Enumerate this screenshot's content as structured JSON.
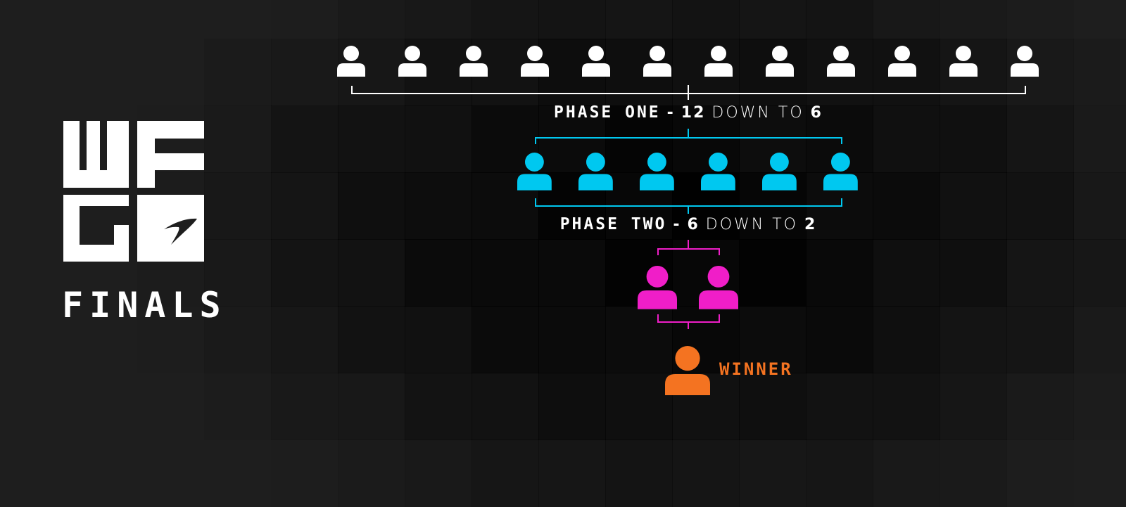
{
  "logo": {
    "text": "WFG",
    "icon": "mclaren-swoosh-icon",
    "subtitle": "FINALS"
  },
  "colors": {
    "background": "#1e1e1e",
    "white": "#ffffff",
    "phase_one": "#00c8f0",
    "phase_two": "#f01ec8",
    "winner": "#f47321"
  },
  "stages": [
    {
      "count": 12,
      "color": "#ffffff"
    },
    {
      "count": 6,
      "color": "#00c8f0"
    },
    {
      "count": 2,
      "color": "#f01ec8"
    },
    {
      "count": 1,
      "color": "#f47321"
    }
  ],
  "phase_one": {
    "label": "PHASE ONE",
    "dash": "-",
    "from": "12",
    "middle": "DOWN TO",
    "to": "6"
  },
  "phase_two": {
    "label": "PHASE TWO",
    "dash": "-",
    "from": "6",
    "middle": "DOWN TO",
    "to": "2"
  },
  "winner_label": "WINNER",
  "icon": "person-icon"
}
